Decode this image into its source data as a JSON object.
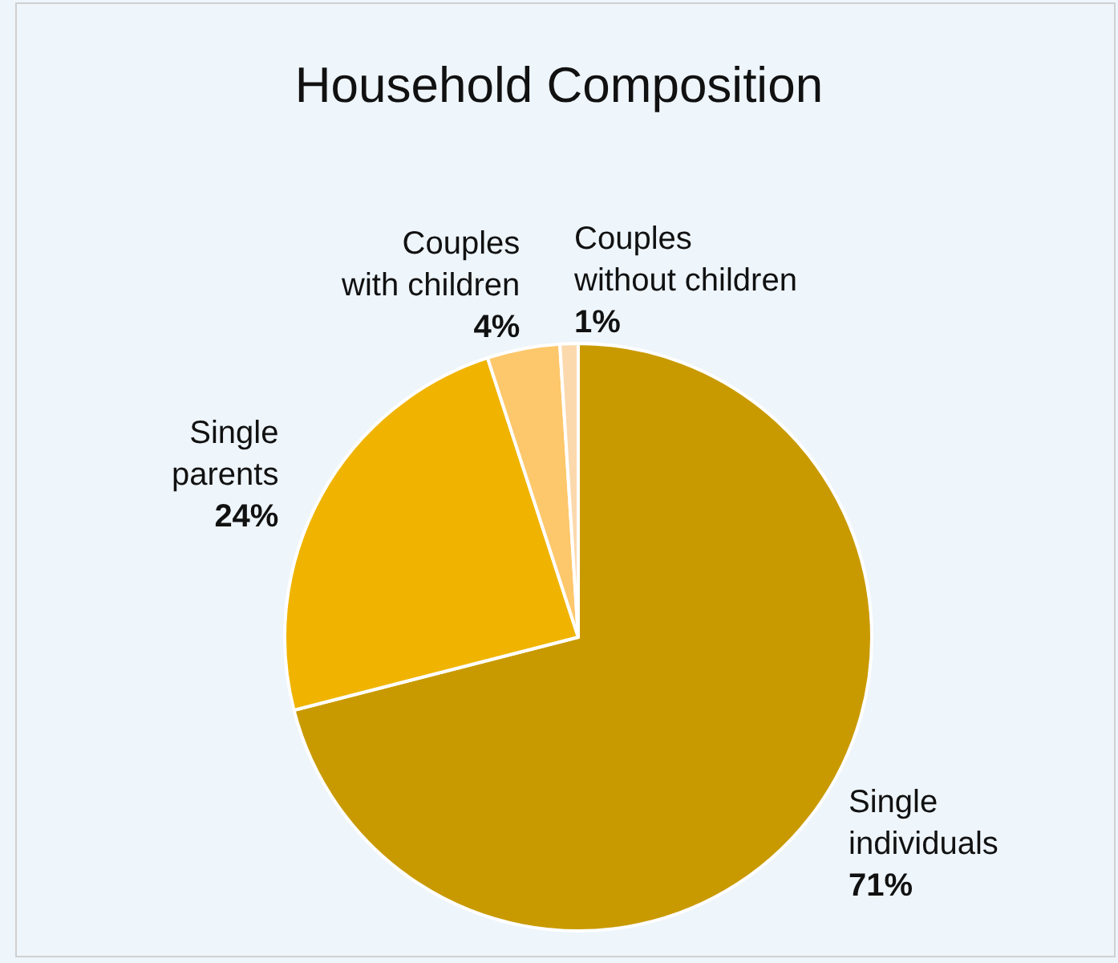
{
  "chart_data": {
    "type": "pie",
    "title": "Household Composition",
    "categories": [
      "Single individuals",
      "Single parents",
      "Couples with children",
      "Couples without children"
    ],
    "values": [
      71,
      24,
      4,
      1
    ],
    "value_labels": [
      "71%",
      "24%",
      "4%",
      "1%"
    ],
    "colors": [
      "#c99a00",
      "#f0b400",
      "#fdc76b",
      "#fbd9ad"
    ],
    "legend": false
  }
}
